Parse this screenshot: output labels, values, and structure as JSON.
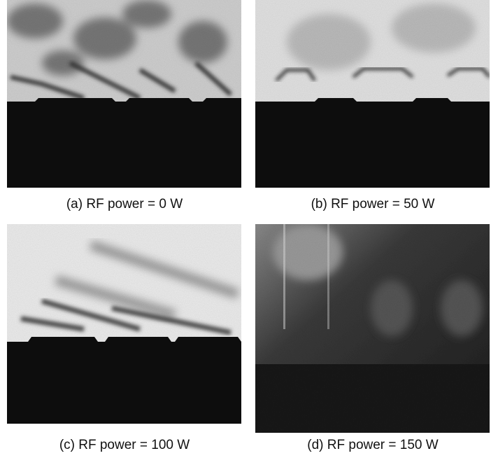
{
  "panels": [
    {
      "caption": "(a) RF power = 0 W"
    },
    {
      "caption": "(b) RF power = 50 W"
    },
    {
      "caption": "(c) RF power = 100 W"
    },
    {
      "caption": "(d) RF power = 150 W"
    }
  ]
}
